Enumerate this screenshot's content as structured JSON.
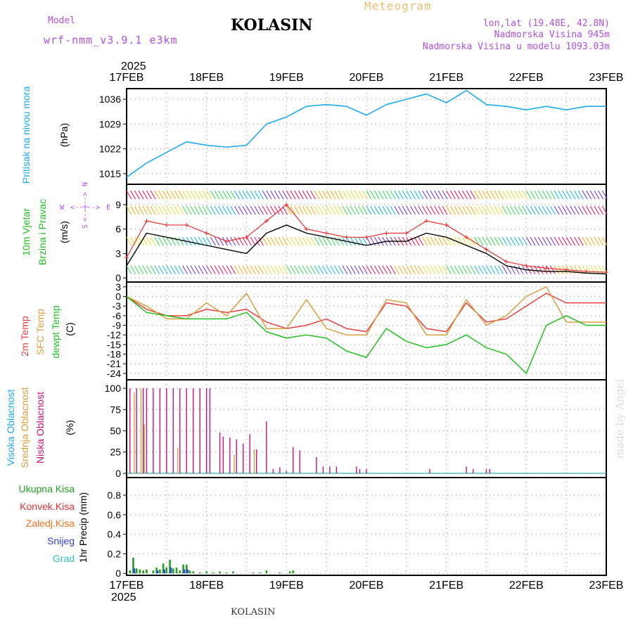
{
  "header": {
    "model_label": "Model",
    "model_name": "wrf-nmm_v3.9.1 e3km",
    "title": "KOLASIN",
    "meteogram_label": "Meteogram",
    "lonlat": "lon,lat (19.48E, 42.8N)",
    "altitude": "Nadmorska Visina 945m",
    "model_altitude": "Nadmorska Visina u modelu 1093.03m",
    "year_top": "2025",
    "year_bottom": "2025",
    "footer_title": "KOLASIN",
    "watermark": "made by Angel"
  },
  "colors": {
    "pressure": "#1eaaf0",
    "temp2m": "#e84040",
    "sfc": "#d8a040",
    "dewpt": "#20c020",
    "high_cloud": "#1eaaf0",
    "mid_cloud": "#d8a040",
    "low_cloud": "#cc1177",
    "total_precip": "#20a020",
    "conv_precip": "#e83030",
    "frz_precip": "#ff7020",
    "snow": "#3040e0",
    "graupel": "#30c0c0",
    "wind_speed": "#000000",
    "gust": "#e83030"
  },
  "chart_data": [
    {
      "type": "line",
      "name": "pressure",
      "x_ticks": [
        "17FEB",
        "18FEB",
        "19FEB",
        "20FEB",
        "21FEB",
        "22FEB",
        "23FEB"
      ],
      "x_hours": [
        0,
        6,
        12,
        18,
        24,
        30,
        36,
        42,
        48,
        54,
        60,
        66,
        72,
        78,
        84,
        90,
        96,
        102,
        108,
        114,
        120,
        126,
        132,
        138,
        144
      ],
      "ylabel": "Pritisak na nivou mora",
      "yunit": "(hPa)",
      "yticks": [
        1015,
        1022,
        1029,
        1036
      ],
      "ylim": [
        1012,
        1039
      ],
      "series": [
        {
          "name": "Pritisak na nivou mora",
          "values": [
            1014,
            1018,
            1021,
            1024,
            1023,
            1022.5,
            1023,
            1029,
            1031,
            1034,
            1034.5,
            1034,
            1031.5,
            1034.5,
            1036,
            1037.5,
            1035,
            1038.5,
            1034.5,
            1034,
            1033,
            1034,
            1033,
            1034,
            1034
          ]
        }
      ]
    },
    {
      "type": "line",
      "name": "wind",
      "x_hours": [
        0,
        6,
        12,
        18,
        24,
        30,
        36,
        42,
        48,
        54,
        60,
        66,
        72,
        78,
        84,
        90,
        96,
        102,
        108,
        114,
        120,
        126,
        132,
        138,
        144
      ],
      "ylabel": "10m Vjetar",
      "ylabel2": "Brzina i Pravac",
      "yunit": "(m/s)",
      "compass": [
        "N",
        "S",
        "W",
        "E"
      ],
      "yticks": [
        0,
        3,
        6,
        9
      ],
      "ylim": [
        -0.5,
        11.5
      ],
      "series": [
        {
          "name": "Brzina",
          "values": [
            1.5,
            5.5,
            5.0,
            4.5,
            4.0,
            3.5,
            3.0,
            5.5,
            6.5,
            5.5,
            5.0,
            4.5,
            4.0,
            4.5,
            4.5,
            5.5,
            5.0,
            4.0,
            3.0,
            1.5,
            1.0,
            0.8,
            0.8,
            0.6,
            0.5
          ]
        },
        {
          "name": "Udar",
          "values": [
            2.5,
            7.0,
            6.5,
            6.5,
            5.5,
            4.5,
            5.0,
            7.0,
            9.0,
            6.0,
            5.5,
            5.0,
            5.0,
            5.5,
            5.5,
            7.0,
            6.5,
            5.0,
            3.5,
            2.0,
            1.5,
            1.2,
            1.0,
            0.8,
            0.7
          ]
        }
      ]
    },
    {
      "type": "line",
      "name": "temperature",
      "x_hours": [
        0,
        6,
        12,
        18,
        24,
        30,
        36,
        42,
        48,
        54,
        60,
        66,
        72,
        78,
        84,
        90,
        96,
        102,
        108,
        114,
        120,
        126,
        132,
        138,
        144
      ],
      "ylabels": [
        "2m Temp",
        "SFC Temp",
        "dewpt Temp"
      ],
      "yunit": "(C)",
      "yticks": [
        3,
        0,
        -3,
        -6,
        -9,
        -12,
        -15,
        -18,
        -21,
        -24
      ],
      "ylim": [
        -26,
        4.5
      ],
      "series": [
        {
          "name": "2m Temp",
          "values": [
            0,
            -4,
            -6,
            -6,
            -4,
            -5,
            -4,
            -8,
            -10,
            -9,
            -7,
            -10,
            -11,
            -2,
            -3,
            -10,
            -11,
            -2,
            -8,
            -7,
            -3,
            1,
            -2,
            -2,
            -2
          ]
        },
        {
          "name": "SFC Temp",
          "values": [
            0,
            -3,
            -7,
            -7,
            -2,
            -6,
            1,
            -10,
            -10,
            -1,
            -10,
            -12,
            -12,
            -1,
            -2,
            -12,
            -12,
            -1,
            -9,
            -6,
            0,
            3,
            -8,
            -8,
            -8
          ]
        },
        {
          "name": "dewpt Temp",
          "values": [
            0,
            -5,
            -6,
            -7,
            -7,
            -7,
            -5,
            -11,
            -13,
            -12,
            -13,
            -17,
            -19,
            -10,
            -14,
            -16,
            -15,
            -12,
            -16,
            -18,
            -24,
            -9,
            -6,
            -9,
            -9
          ]
        }
      ]
    },
    {
      "type": "bar",
      "name": "cloud_cover",
      "ylabels": [
        "Visoka Oblacnost",
        "Srednja Oblacnost",
        "Niska Oblacnost"
      ],
      "yunit": "(%)",
      "yticks": [
        0,
        25,
        50,
        75,
        100
      ],
      "ylim": [
        -5,
        110
      ],
      "series": [
        {
          "name": "Niska Oblacnost",
          "hours": [
            1,
            3,
            5,
            6,
            8,
            10,
            12,
            14,
            16,
            18,
            20,
            22,
            24,
            25,
            28,
            29,
            31,
            33,
            35,
            37,
            39,
            42,
            44,
            46,
            48,
            50,
            52,
            57,
            59,
            61,
            63,
            69,
            70,
            72,
            91,
            102,
            104,
            108,
            109
          ],
          "values": [
            100,
            100,
            100,
            100,
            100,
            100,
            100,
            100,
            100,
            100,
            100,
            100,
            100,
            100,
            48,
            43,
            42,
            40,
            35,
            46,
            28,
            61,
            5,
            7,
            3,
            31,
            27,
            19,
            8,
            8,
            8,
            8,
            5,
            5,
            5,
            8,
            5,
            5,
            5
          ]
        },
        {
          "name": "Srednja Oblacnost",
          "hours": [
            2,
            4,
            5,
            15,
            32,
            38
          ],
          "values": [
            95,
            100,
            58,
            30,
            22,
            28
          ]
        },
        {
          "name": "Visoka Oblacnost",
          "hours": [],
          "values": []
        }
      ]
    },
    {
      "type": "bar",
      "name": "precipitation",
      "ylabels": [
        "Ukupna Kisa",
        "Konvek.Kisa",
        "Zaledj.Kisa",
        "Snijeg",
        "Grad"
      ],
      "yunit": "1hr Precip (mm)",
      "yticks": [
        0,
        0.2,
        0.4,
        0.6,
        0.8
      ],
      "ylim": [
        -0.02,
        0.98
      ],
      "series": [
        {
          "name": "Ukupna Kisa",
          "hours": [
            1,
            2,
            3,
            4,
            5,
            6,
            8,
            9,
            10,
            11,
            12,
            13,
            14,
            15,
            16,
            17,
            18,
            19,
            20,
            22,
            24,
            26,
            28,
            30,
            32,
            38,
            40,
            42,
            46,
            49,
            50
          ],
          "values": [
            0.03,
            0.16,
            0.05,
            0.04,
            0.03,
            0.04,
            0.03,
            0.06,
            0.04,
            0.1,
            0.06,
            0.14,
            0.05,
            0.06,
            0.03,
            0.09,
            0.09,
            0.03,
            0.02,
            0.01,
            0.02,
            0.01,
            0.02,
            0.01,
            0.02,
            0.01,
            0.01,
            0.03,
            0.01,
            0.02,
            0.03
          ]
        },
        {
          "name": "Snijeg",
          "hours": [
            2,
            9,
            11,
            13,
            17,
            18
          ],
          "values": [
            0.05,
            0.03,
            0.04,
            0.06,
            0.04,
            0.04
          ]
        }
      ]
    }
  ]
}
